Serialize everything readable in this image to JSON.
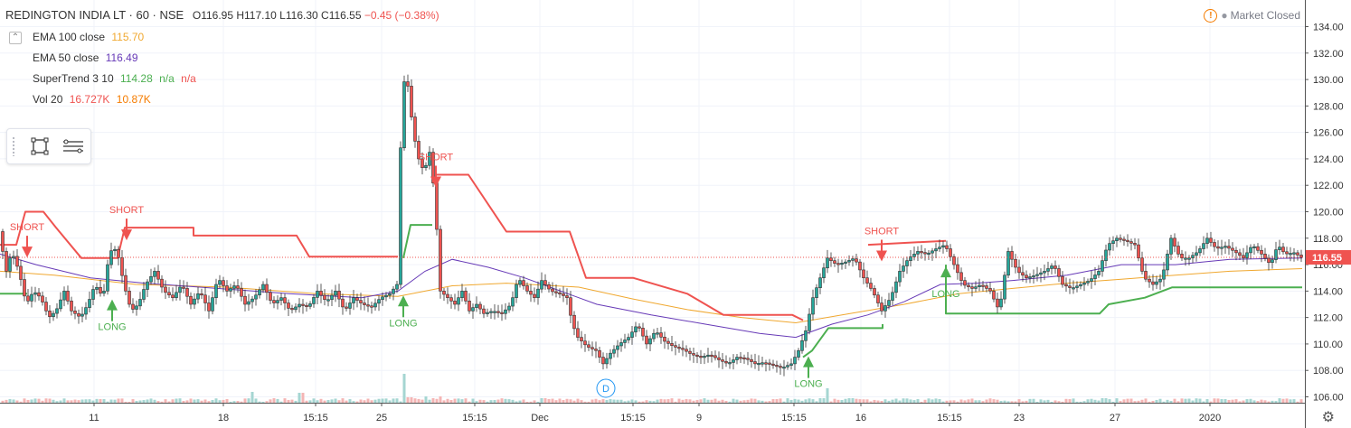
{
  "header": {
    "symbol": "REDINGTON INDIA LT · 60 · NSE",
    "o_label": "O",
    "o": "116.95",
    "h_label": "H",
    "h": "117.10",
    "l_label": "L",
    "l": "116.30",
    "c_label": "C",
    "c": "116.55",
    "change": "−0.45 (−0.38%)",
    "change_color": "#ef5350"
  },
  "indicators": [
    {
      "name": "EMA 100 close",
      "values": [
        "115.70"
      ],
      "colors": [
        "#f0a830"
      ]
    },
    {
      "name": "EMA 50 close",
      "values": [
        "116.49"
      ],
      "colors": [
        "#673ab7"
      ]
    },
    {
      "name": "SuperTrend 3 10",
      "values": [
        "114.28",
        "n/a",
        "n/a"
      ],
      "colors": [
        "#4caf50",
        "#4caf50",
        "#ef5350"
      ]
    },
    {
      "name": "Vol 20",
      "values": [
        "16.727K",
        "10.87K"
      ],
      "colors": [
        "#ef5350",
        "#f57c00"
      ]
    }
  ],
  "market_status": "Market Closed",
  "icons": [
    "collapse-icon",
    "warning-icon",
    "drag-handle-icon",
    "rectangle-tool-icon",
    "menu-lines-icon",
    "settings-gear-icon",
    "dividend-marker"
  ],
  "colors": {
    "up": "#26a69a",
    "down": "#ef5350",
    "supertrend_up": "#4caf50",
    "supertrend_down": "#ef5350",
    "ema100": "#f0a830",
    "ema50": "#673ab7",
    "last_price_label": "#ef5350"
  },
  "chart_data": {
    "type": "candlestick",
    "ylim": [
      106,
      134.5
    ],
    "y_ticks": [
      "134.00",
      "132.00",
      "130.00",
      "128.00",
      "126.00",
      "124.00",
      "122.00",
      "120.00",
      "118.00",
      "116.00",
      "114.00",
      "112.00",
      "110.00",
      "108.00",
      "106.00"
    ],
    "x_ticks": [
      "11",
      "18",
      "15:15",
      "25",
      "15:15",
      "Dec",
      "15:15",
      "9",
      "15:15",
      "16",
      "15:15",
      "23",
      "27",
      "2020"
    ],
    "last_price": "116.55",
    "close_path": [
      [
        0,
        118.5
      ],
      [
        8,
        115.5
      ],
      [
        14,
        117
      ],
      [
        22,
        115.5
      ],
      [
        30,
        113
      ],
      [
        38,
        114
      ],
      [
        46,
        113.5
      ],
      [
        55,
        112
      ],
      [
        63,
        112.5
      ],
      [
        72,
        114
      ],
      [
        80,
        112.5
      ],
      [
        90,
        112
      ],
      [
        98,
        113
      ],
      [
        106,
        114.5
      ],
      [
        115,
        113.5
      ],
      [
        122,
        117
      ],
      [
        130,
        117.2
      ],
      [
        138,
        114.5
      ],
      [
        146,
        112.5
      ],
      [
        154,
        113
      ],
      [
        162,
        114.5
      ],
      [
        172,
        115.5
      ],
      [
        182,
        114
      ],
      [
        192,
        113.5
      ],
      [
        202,
        114.5
      ],
      [
        212,
        113
      ],
      [
        222,
        114
      ],
      [
        232,
        112.5
      ],
      [
        242,
        115
      ],
      [
        252,
        114
      ],
      [
        262,
        114.5
      ],
      [
        272,
        113
      ],
      [
        282,
        113.5
      ],
      [
        292,
        114.5
      ],
      [
        302,
        113
      ],
      [
        312,
        113.5
      ],
      [
        322,
        112.5
      ],
      [
        332,
        113
      ],
      [
        342,
        112.8
      ],
      [
        352,
        114
      ],
      [
        362,
        113.2
      ],
      [
        372,
        114
      ],
      [
        382,
        112.5
      ],
      [
        392,
        113.5
      ],
      [
        402,
        113
      ],
      [
        412,
        112.8
      ],
      [
        422,
        113.5
      ],
      [
        432,
        113.8
      ],
      [
        440,
        114.5
      ],
      [
        446,
        130
      ],
      [
        452,
        129.5
      ],
      [
        458,
        126
      ],
      [
        464,
        124
      ],
      [
        470,
        123
      ],
      [
        476,
        124.5
      ],
      [
        482,
        121
      ],
      [
        488,
        114
      ],
      [
        496,
        113.5
      ],
      [
        504,
        113
      ],
      [
        512,
        114
      ],
      [
        520,
        112.5
      ],
      [
        528,
        113
      ],
      [
        536,
        112.3
      ],
      [
        546,
        112.5
      ],
      [
        556,
        112.3
      ],
      [
        566,
        113
      ],
      [
        574,
        115
      ],
      [
        584,
        114
      ],
      [
        592,
        113.5
      ],
      [
        600,
        114.8
      ],
      [
        610,
        114
      ],
      [
        620,
        113.8
      ],
      [
        628,
        113.5
      ],
      [
        634,
        111.5
      ],
      [
        640,
        110.5
      ],
      [
        650,
        109.8
      ],
      [
        660,
        109.5
      ],
      [
        668,
        108.5
      ],
      [
        676,
        109.3
      ],
      [
        686,
        110
      ],
      [
        696,
        110.5
      ],
      [
        706,
        111.5
      ],
      [
        716,
        110
      ],
      [
        726,
        111
      ],
      [
        736,
        110.2
      ],
      [
        746,
        109.8
      ],
      [
        756,
        109.6
      ],
      [
        766,
        109.2
      ],
      [
        776,
        109
      ],
      [
        786,
        109.2
      ],
      [
        796,
        108.8
      ],
      [
        806,
        108.5
      ],
      [
        816,
        109
      ],
      [
        826,
        108.9
      ],
      [
        836,
        108.5
      ],
      [
        846,
        108.6
      ],
      [
        856,
        108.4
      ],
      [
        866,
        108.2
      ],
      [
        876,
        108.5
      ],
      [
        884,
        109.5
      ],
      [
        892,
        111
      ],
      [
        900,
        113.5
      ],
      [
        908,
        115
      ],
      [
        916,
        116.5
      ],
      [
        926,
        116
      ],
      [
        936,
        116.2
      ],
      [
        946,
        116.5
      ],
      [
        956,
        115
      ],
      [
        966,
        114
      ],
      [
        976,
        112.5
      ],
      [
        986,
        113.5
      ],
      [
        996,
        115.5
      ],
      [
        1006,
        116.5
      ],
      [
        1016,
        117
      ],
      [
        1026,
        116.8
      ],
      [
        1036,
        117.2
      ],
      [
        1046,
        117.5
      ],
      [
        1056,
        116
      ],
      [
        1066,
        114.5
      ],
      [
        1076,
        114.2
      ],
      [
        1086,
        114.5
      ],
      [
        1096,
        114
      ],
      [
        1106,
        112.5
      ],
      [
        1116,
        117
      ],
      [
        1126,
        115.5
      ],
      [
        1136,
        115
      ],
      [
        1146,
        115.2
      ],
      [
        1156,
        115.5
      ],
      [
        1166,
        116
      ],
      [
        1176,
        114.5
      ],
      [
        1186,
        114.2
      ],
      [
        1196,
        114.5
      ],
      [
        1206,
        114.8
      ],
      [
        1216,
        115.5
      ],
      [
        1226,
        117.5
      ],
      [
        1236,
        118
      ],
      [
        1246,
        117.8
      ],
      [
        1256,
        117.5
      ],
      [
        1266,
        115
      ],
      [
        1276,
        114.5
      ],
      [
        1286,
        115
      ],
      [
        1296,
        118
      ],
      [
        1306,
        116.5
      ],
      [
        1316,
        116.5
      ],
      [
        1326,
        117
      ],
      [
        1336,
        118
      ],
      [
        1346,
        117.2
      ],
      [
        1356,
        117.4
      ],
      [
        1366,
        117
      ],
      [
        1376,
        116.5
      ],
      [
        1386,
        117.5
      ],
      [
        1396,
        116.8
      ],
      [
        1406,
        116
      ],
      [
        1414,
        117.5
      ],
      [
        1422,
        116.8
      ],
      [
        1432,
        116.9
      ],
      [
        1440,
        116.55
      ]
    ],
    "ema100": [
      [
        0,
        115.5
      ],
      [
        60,
        115.2
      ],
      [
        150,
        114.5
      ],
      [
        250,
        114.3
      ],
      [
        350,
        113.8
      ],
      [
        440,
        113.6
      ],
      [
        500,
        114.4
      ],
      [
        560,
        114.6
      ],
      [
        640,
        114.3
      ],
      [
        700,
        113.4
      ],
      [
        760,
        112.6
      ],
      [
        820,
        112
      ],
      [
        880,
        111.6
      ],
      [
        940,
        112.3
      ],
      [
        1000,
        113
      ],
      [
        1060,
        113.8
      ],
      [
        1120,
        114.2
      ],
      [
        1180,
        114.6
      ],
      [
        1240,
        114.9
      ],
      [
        1300,
        115.2
      ],
      [
        1360,
        115.5
      ],
      [
        1440,
        115.7
      ]
    ],
    "ema50": [
      [
        0,
        116.8
      ],
      [
        40,
        116
      ],
      [
        100,
        115
      ],
      [
        160,
        114.6
      ],
      [
        240,
        114.2
      ],
      [
        320,
        113.8
      ],
      [
        400,
        113.5
      ],
      [
        440,
        114
      ],
      [
        470,
        115.5
      ],
      [
        500,
        116.4
      ],
      [
        540,
        115.8
      ],
      [
        580,
        115
      ],
      [
        620,
        114
      ],
      [
        660,
        113
      ],
      [
        720,
        112.2
      ],
      [
        780,
        111.5
      ],
      [
        840,
        110.8
      ],
      [
        880,
        110.5
      ],
      [
        920,
        111.5
      ],
      [
        960,
        112.2
      ],
      [
        1000,
        113.2
      ],
      [
        1040,
        114.5
      ],
      [
        1080,
        114.6
      ],
      [
        1120,
        114.8
      ],
      [
        1180,
        115.2
      ],
      [
        1240,
        116
      ],
      [
        1300,
        116
      ],
      [
        1360,
        116.4
      ],
      [
        1440,
        116.5
      ]
    ],
    "supertrend": [
      {
        "color": "#ef5350",
        "points": [
          [
            0,
            117.5
          ],
          [
            18,
            117.5
          ],
          [
            28,
            120
          ],
          [
            48,
            120
          ],
          [
            62,
            118.8
          ],
          [
            90,
            116.5
          ],
          [
            130,
            116.5
          ],
          [
            138,
            118.8
          ],
          [
            214,
            118.8
          ],
          [
            214,
            118.2
          ],
          [
            328,
            118.2
          ],
          [
            342,
            116.6
          ],
          [
            440,
            116.6
          ]
        ]
      },
      {
        "color": "#ef5350",
        "points": [
          [
            482,
            122.8
          ],
          [
            518,
            122.8
          ],
          [
            560,
            118.5
          ],
          [
            630,
            118.5
          ],
          [
            648,
            115
          ],
          [
            700,
            115
          ],
          [
            760,
            113.8
          ],
          [
            800,
            112.2
          ],
          [
            876,
            112.2
          ],
          [
            888,
            111.8
          ]
        ]
      },
      {
        "color": "#ef5350",
        "points": [
          [
            960,
            117.5
          ],
          [
            1046,
            117.8
          ]
        ]
      },
      {
        "color": "#4caf50",
        "points": [
          [
            0,
            113.8
          ],
          [
            30,
            113.8
          ]
        ]
      },
      {
        "color": "#4caf50",
        "points": [
          [
            446,
            116.5
          ],
          [
            454,
            119
          ],
          [
            478,
            119
          ]
        ]
      },
      {
        "color": "#4caf50",
        "points": [
          [
            888,
            109
          ],
          [
            898,
            109.5
          ],
          [
            916,
            111.2
          ],
          [
            976,
            111.2
          ],
          [
            976,
            111.5
          ]
        ]
      },
      {
        "color": "#4caf50",
        "points": [
          [
            1046,
            116
          ],
          [
            1046,
            112.3
          ],
          [
            1216,
            112.3
          ],
          [
            1226,
            113
          ],
          [
            1266,
            113.5
          ],
          [
            1296,
            114.28
          ],
          [
            1440,
            114.28
          ]
        ]
      }
    ],
    "signals": [
      {
        "label": "SHORT",
        "x": 30,
        "price": 117.5,
        "dir": "down"
      },
      {
        "label": "SHORT",
        "x": 140,
        "price": 118.8,
        "dir": "down"
      },
      {
        "label": "SHORT",
        "x": 482,
        "price": 122.8,
        "dir": "down"
      },
      {
        "label": "SHORT",
        "x": 975,
        "price": 117.2,
        "dir": "down"
      },
      {
        "label": "LONG",
        "x": 124,
        "price": 113.5,
        "dir": "up"
      },
      {
        "label": "LONG",
        "x": 446,
        "price": 113.8,
        "dir": "up"
      },
      {
        "label": "LONG",
        "x": 894,
        "price": 109.2,
        "dir": "up"
      },
      {
        "label": "LONG",
        "x": 1046,
        "price": 116,
        "dir": "up"
      }
    ],
    "volume_spikes": [
      [
        112,
        0.4
      ],
      [
        278,
        1.2
      ],
      [
        332,
        1.1
      ],
      [
        446,
        3.2
      ],
      [
        452,
        0.6
      ],
      [
        470,
        0.7
      ],
      [
        478,
        0.5
      ],
      [
        486,
        0.7
      ],
      [
        600,
        0.5
      ],
      [
        908,
        0.5
      ],
      [
        914,
        1.6
      ],
      [
        940,
        0.5
      ],
      [
        1220,
        0.5
      ],
      [
        1352,
        0.4
      ]
    ]
  }
}
